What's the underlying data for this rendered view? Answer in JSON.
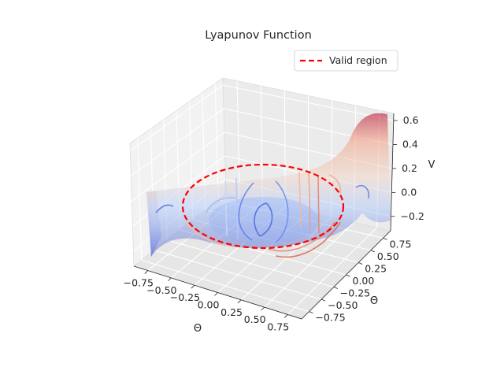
{
  "chart_data": {
    "type": "surface3d",
    "title": "Lyapunov Function",
    "xlabel": "Θ",
    "ylabel": "Θ̇",
    "zlabel": "V",
    "x_ticks": [
      "−0.75",
      "−0.50",
      "−0.25",
      "0.00",
      "0.25",
      "0.50",
      "0.75"
    ],
    "y_ticks": [
      "−0.75",
      "−0.50",
      "−0.25",
      "0.00",
      "0.25",
      "0.50",
      "0.75"
    ],
    "z_ticks": [
      "−0.2",
      "0.0",
      "0.2",
      "0.4",
      "0.6"
    ],
    "x_values": [
      -0.75,
      -0.5,
      -0.25,
      0.0,
      0.25,
      0.5,
      0.75
    ],
    "y_values": [
      -0.75,
      -0.5,
      -0.25,
      0.0,
      0.25,
      0.5,
      0.75
    ],
    "z_values": [
      -0.2,
      0.0,
      0.2,
      0.4,
      0.6
    ],
    "xlim": [
      -0.9,
      0.9
    ],
    "ylim": [
      -0.9,
      0.9
    ],
    "zlim": [
      -0.32,
      0.66
    ],
    "colormap": "coolwarm",
    "grid": true,
    "legend": {
      "placement": "upper right",
      "entries": [
        {
          "label": "Valid region",
          "color": "#ff0000",
          "style": "dashed"
        }
      ]
    },
    "valid_region": {
      "shape": "ellipse",
      "radius_theta": 0.55,
      "radius_theta_dot": 0.55,
      "z": 0.0
    }
  }
}
